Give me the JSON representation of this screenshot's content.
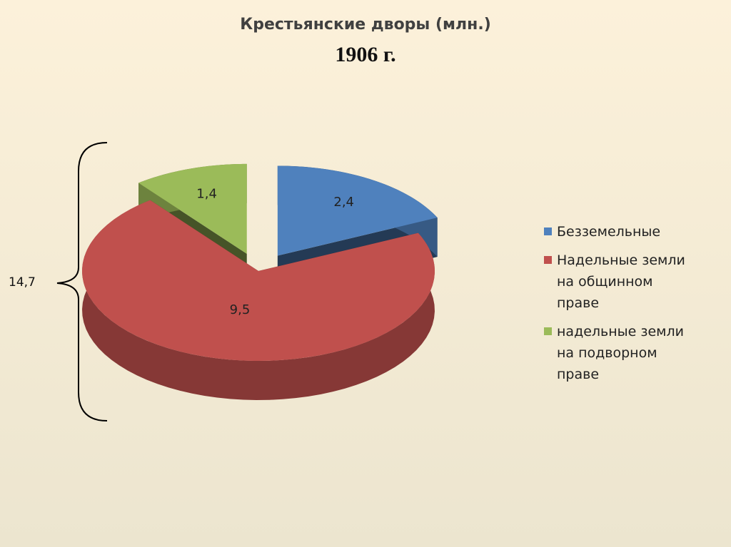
{
  "chart_data": {
    "type": "pie3d",
    "title": "Крестьянские дворы (млн.)",
    "subtitle": "1906 г.",
    "annotation": "14,7",
    "categories": [
      "Безземельные",
      "Надельные земли на общинном праве",
      "надельные земли на подворном праве"
    ],
    "values": [
      2.4,
      9.5,
      1.4
    ],
    "value_labels": [
      "2,4",
      "9,5",
      "1,4"
    ],
    "colors": [
      "#4f81bd",
      "#c0504d",
      "#9bbb59"
    ],
    "exploded": [
      true,
      false,
      true
    ],
    "legend": "right"
  }
}
